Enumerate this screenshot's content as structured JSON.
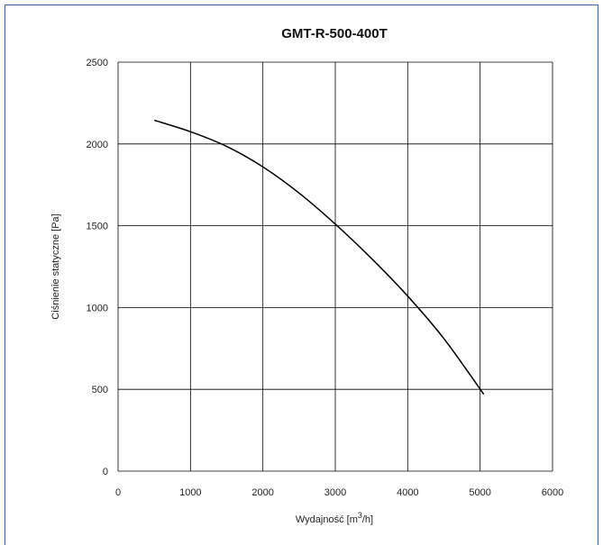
{
  "chart_data": {
    "type": "line",
    "title": "GMT-R-500-400T",
    "xlabel_prefix": "Wydajność [m",
    "xlabel_sup": "3",
    "xlabel_suffix": "/h]",
    "ylabel": "Ciśnienie statyczne [Pa]",
    "xlim": [
      0,
      6000
    ],
    "ylim": [
      0,
      2500
    ],
    "xticks": [
      0,
      1000,
      2000,
      3000,
      4000,
      5000,
      6000
    ],
    "yticks": [
      0,
      500,
      1000,
      1500,
      2000,
      2500
    ],
    "grid": true,
    "series": [
      {
        "x": [
          500,
          1000,
          1500,
          2000,
          2500,
          3000,
          3500,
          4000,
          4500,
          5050
        ],
        "y": [
          2145,
          2075,
          1985,
          1860,
          1700,
          1510,
          1300,
          1070,
          810,
          470
        ]
      }
    ]
  },
  "colors": {
    "frame": "#3a5f9a",
    "line": "#000000",
    "grid": "#000000"
  }
}
